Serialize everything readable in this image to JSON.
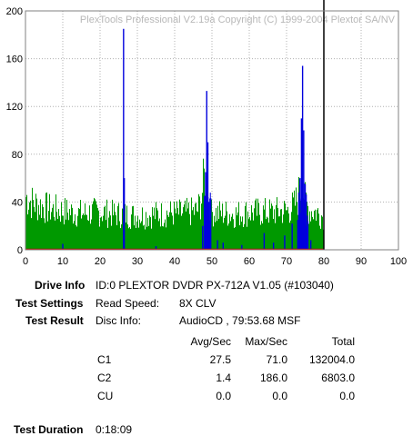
{
  "chart_data": {
    "type": "area",
    "watermark": "PlexTools Professional V2.19a Copyright (C) 1999-2004 Plextor SA/NV",
    "xlim": [
      0,
      100
    ],
    "ylim": [
      0,
      200
    ],
    "x_ticks": [
      0,
      10,
      20,
      30,
      40,
      50,
      60,
      70,
      80,
      90,
      100
    ],
    "y_ticks": [
      0,
      40,
      80,
      120,
      160,
      200
    ],
    "grid": true,
    "disc_end_minute": 80,
    "colors": {
      "c1": "#009900",
      "c2": "#0000dd",
      "cu": "#cc0000",
      "end_marker": "#000000",
      "grid": "#b0b0b0"
    },
    "series": [
      {
        "name": "C1",
        "x": [
          0,
          2,
          4,
          6,
          8,
          10,
          12,
          14,
          16,
          18,
          20,
          22,
          24,
          26,
          28,
          30,
          32,
          34,
          36,
          38,
          40,
          42,
          44,
          46,
          47,
          48,
          49,
          50,
          52,
          54,
          56,
          58,
          60,
          62,
          64,
          66,
          68,
          70,
          72,
          73,
          74,
          75,
          76,
          78,
          80
        ],
        "values": [
          48,
          42,
          40,
          37,
          36,
          35,
          34,
          33,
          33,
          34,
          34,
          33,
          32,
          32,
          31,
          31,
          31,
          32,
          32,
          33,
          33,
          33,
          34,
          35,
          45,
          70,
          30,
          34,
          33,
          33,
          32,
          33,
          34,
          34,
          34,
          34,
          35,
          35,
          40,
          48,
          60,
          42,
          36,
          34,
          30
        ]
      },
      {
        "name": "C2",
        "points": [
          [
            26.3,
            185
          ],
          [
            26.5,
            60
          ],
          [
            47.5,
            20
          ],
          [
            48.0,
            45
          ],
          [
            48.3,
            65
          ],
          [
            48.6,
            133
          ],
          [
            48.9,
            90
          ],
          [
            49.2,
            40
          ],
          [
            49.6,
            12
          ],
          [
            51.5,
            8
          ],
          [
            53.0,
            6
          ],
          [
            64.0,
            14
          ],
          [
            66.5,
            6
          ],
          [
            69.5,
            12
          ],
          [
            71.5,
            22
          ],
          [
            73.0,
            25
          ],
          [
            73.6,
            60
          ],
          [
            74.0,
            110
          ],
          [
            74.3,
            154
          ],
          [
            74.6,
            100
          ],
          [
            75.0,
            55
          ],
          [
            75.6,
            20
          ],
          [
            76.5,
            8
          ],
          [
            10.0,
            5
          ],
          [
            35.0,
            3
          ],
          [
            58.0,
            4
          ]
        ]
      },
      {
        "name": "CU",
        "values": [
          0
        ]
      }
    ]
  },
  "info": {
    "drive_label": "Drive Info",
    "drive_value": "ID:0 PLEXTOR DVDR PX-712A V1.05 (#103040)",
    "settings_label": "Test Settings",
    "read_speed_label": "Read Speed:",
    "read_speed_value": "8X CLV",
    "result_label": "Test Result",
    "disc_info_label": "Disc Info:",
    "disc_info_value": "AudioCD , 79:53.68 MSF",
    "columns": [
      "Avg/Sec",
      "Max/Sec",
      "Total"
    ],
    "rows": [
      {
        "name": "C1",
        "avg": "27.5",
        "max": "71.0",
        "total": "132004.0"
      },
      {
        "name": "C2",
        "avg": "1.4",
        "max": "186.0",
        "total": "6803.0"
      },
      {
        "name": "CU",
        "avg": "0.0",
        "max": "0.0",
        "total": "0.0"
      }
    ],
    "duration_label": "Test Duration",
    "duration_value": "0:18:09"
  }
}
